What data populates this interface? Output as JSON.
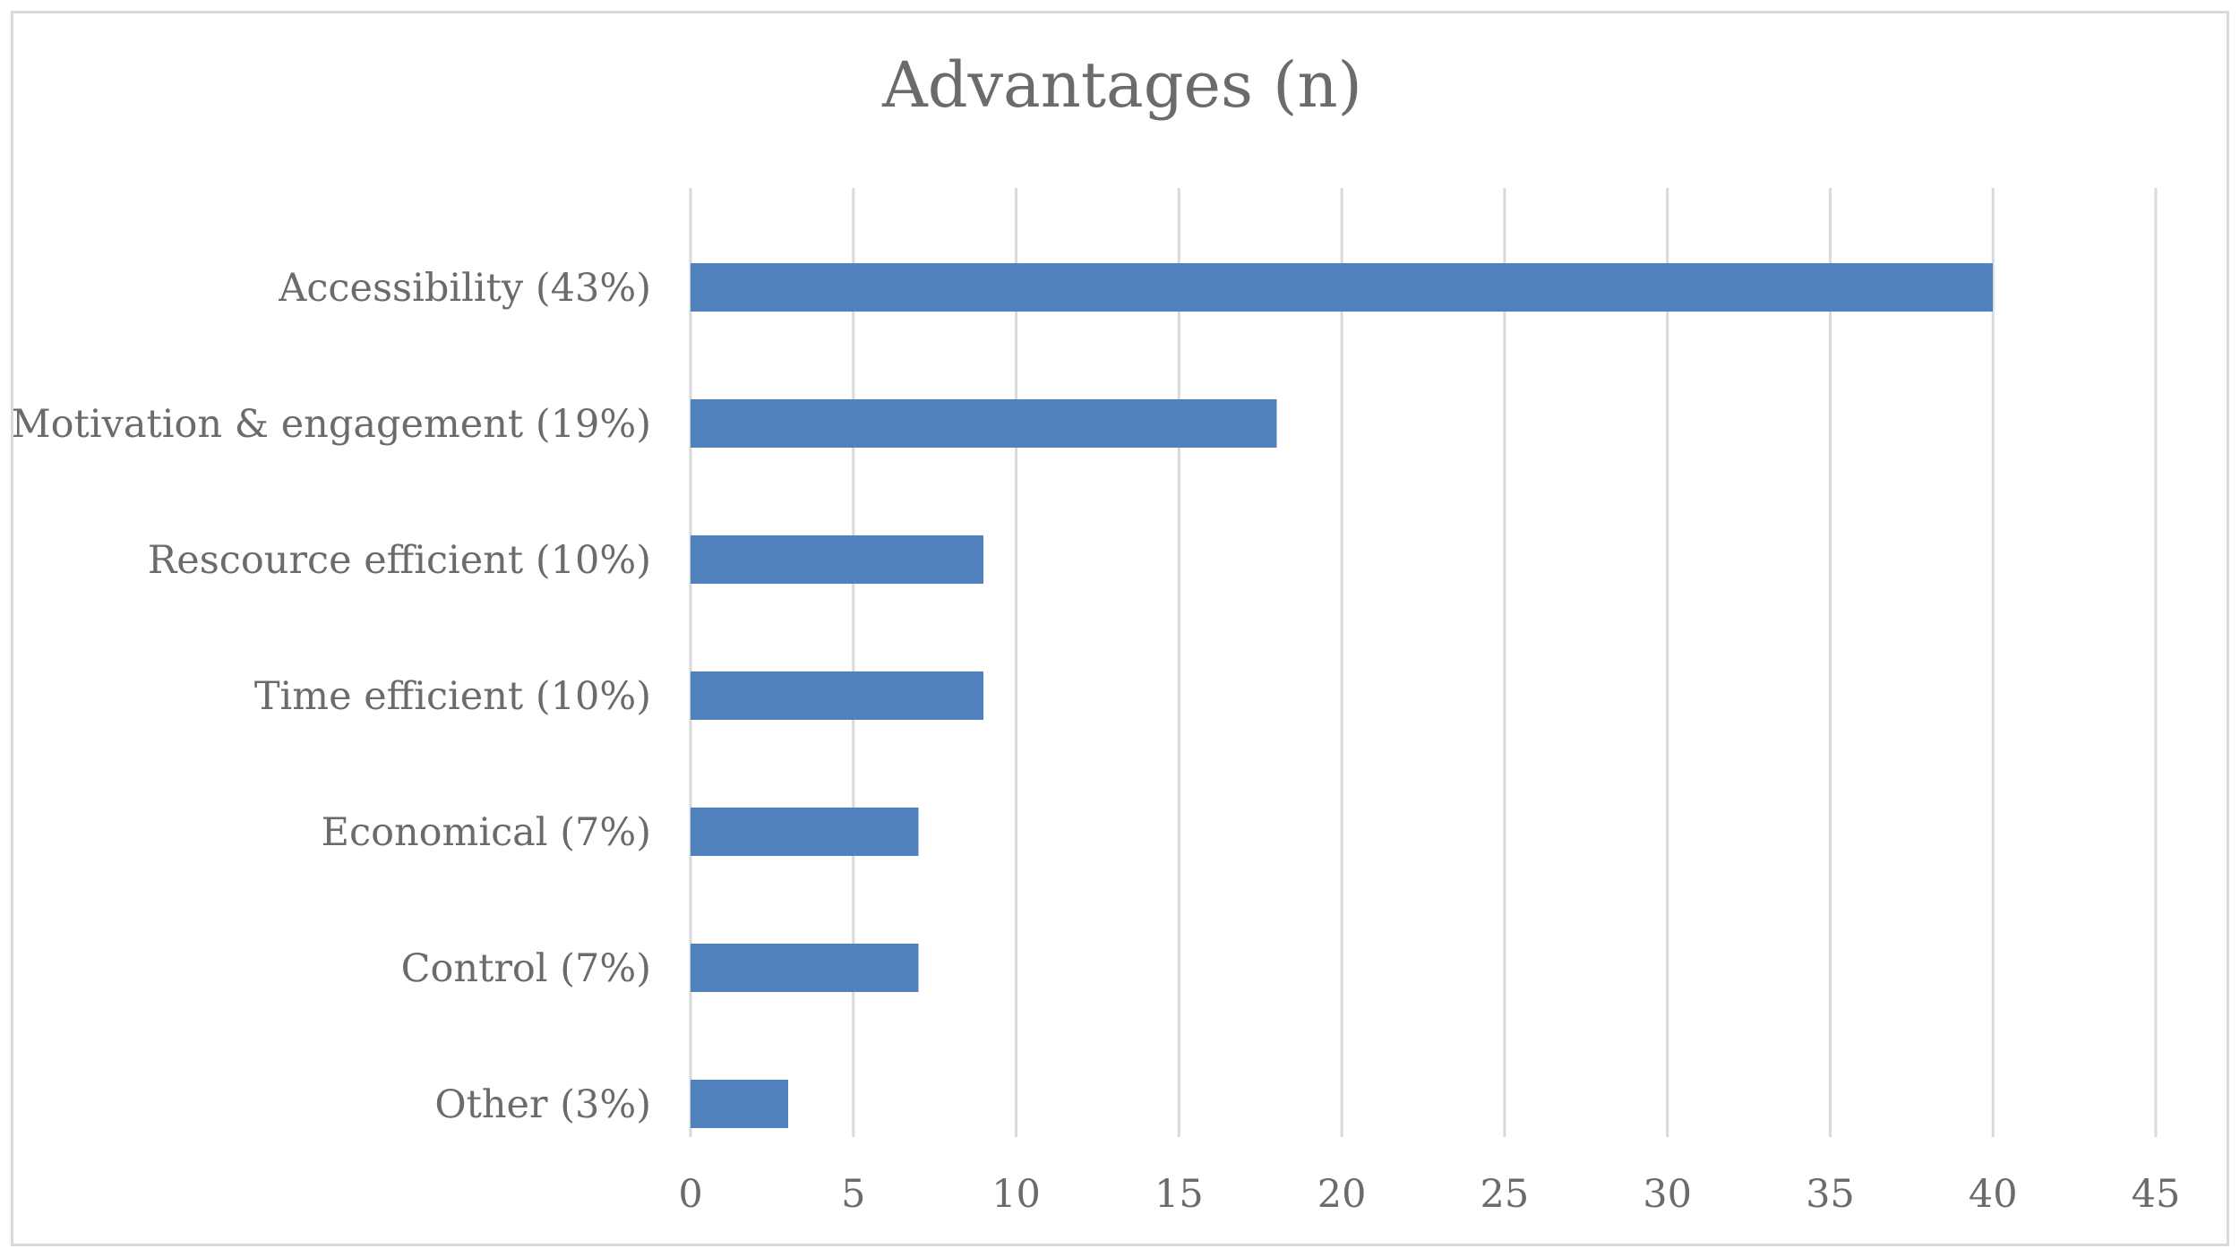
{
  "chart_data": {
    "type": "bar",
    "orientation": "horizontal",
    "title": "Advantages (n)",
    "xlabel": "",
    "ylabel": "",
    "categories": [
      "Accessibility (43%)",
      "Motivation & engagement (19%)",
      "Rescource efficient (10%)",
      "Time efficient (10%)",
      "Economical (7%)",
      "Control (7%)",
      "Other (3%)"
    ],
    "values": [
      40,
      18,
      9,
      9,
      7,
      7,
      3
    ],
    "xlim": [
      0,
      45
    ],
    "xticks": [
      0,
      5,
      10,
      15,
      20,
      25,
      30,
      35,
      40,
      45
    ],
    "grid": "vertical",
    "legend": "none",
    "bar_color": "#4f81bd"
  }
}
